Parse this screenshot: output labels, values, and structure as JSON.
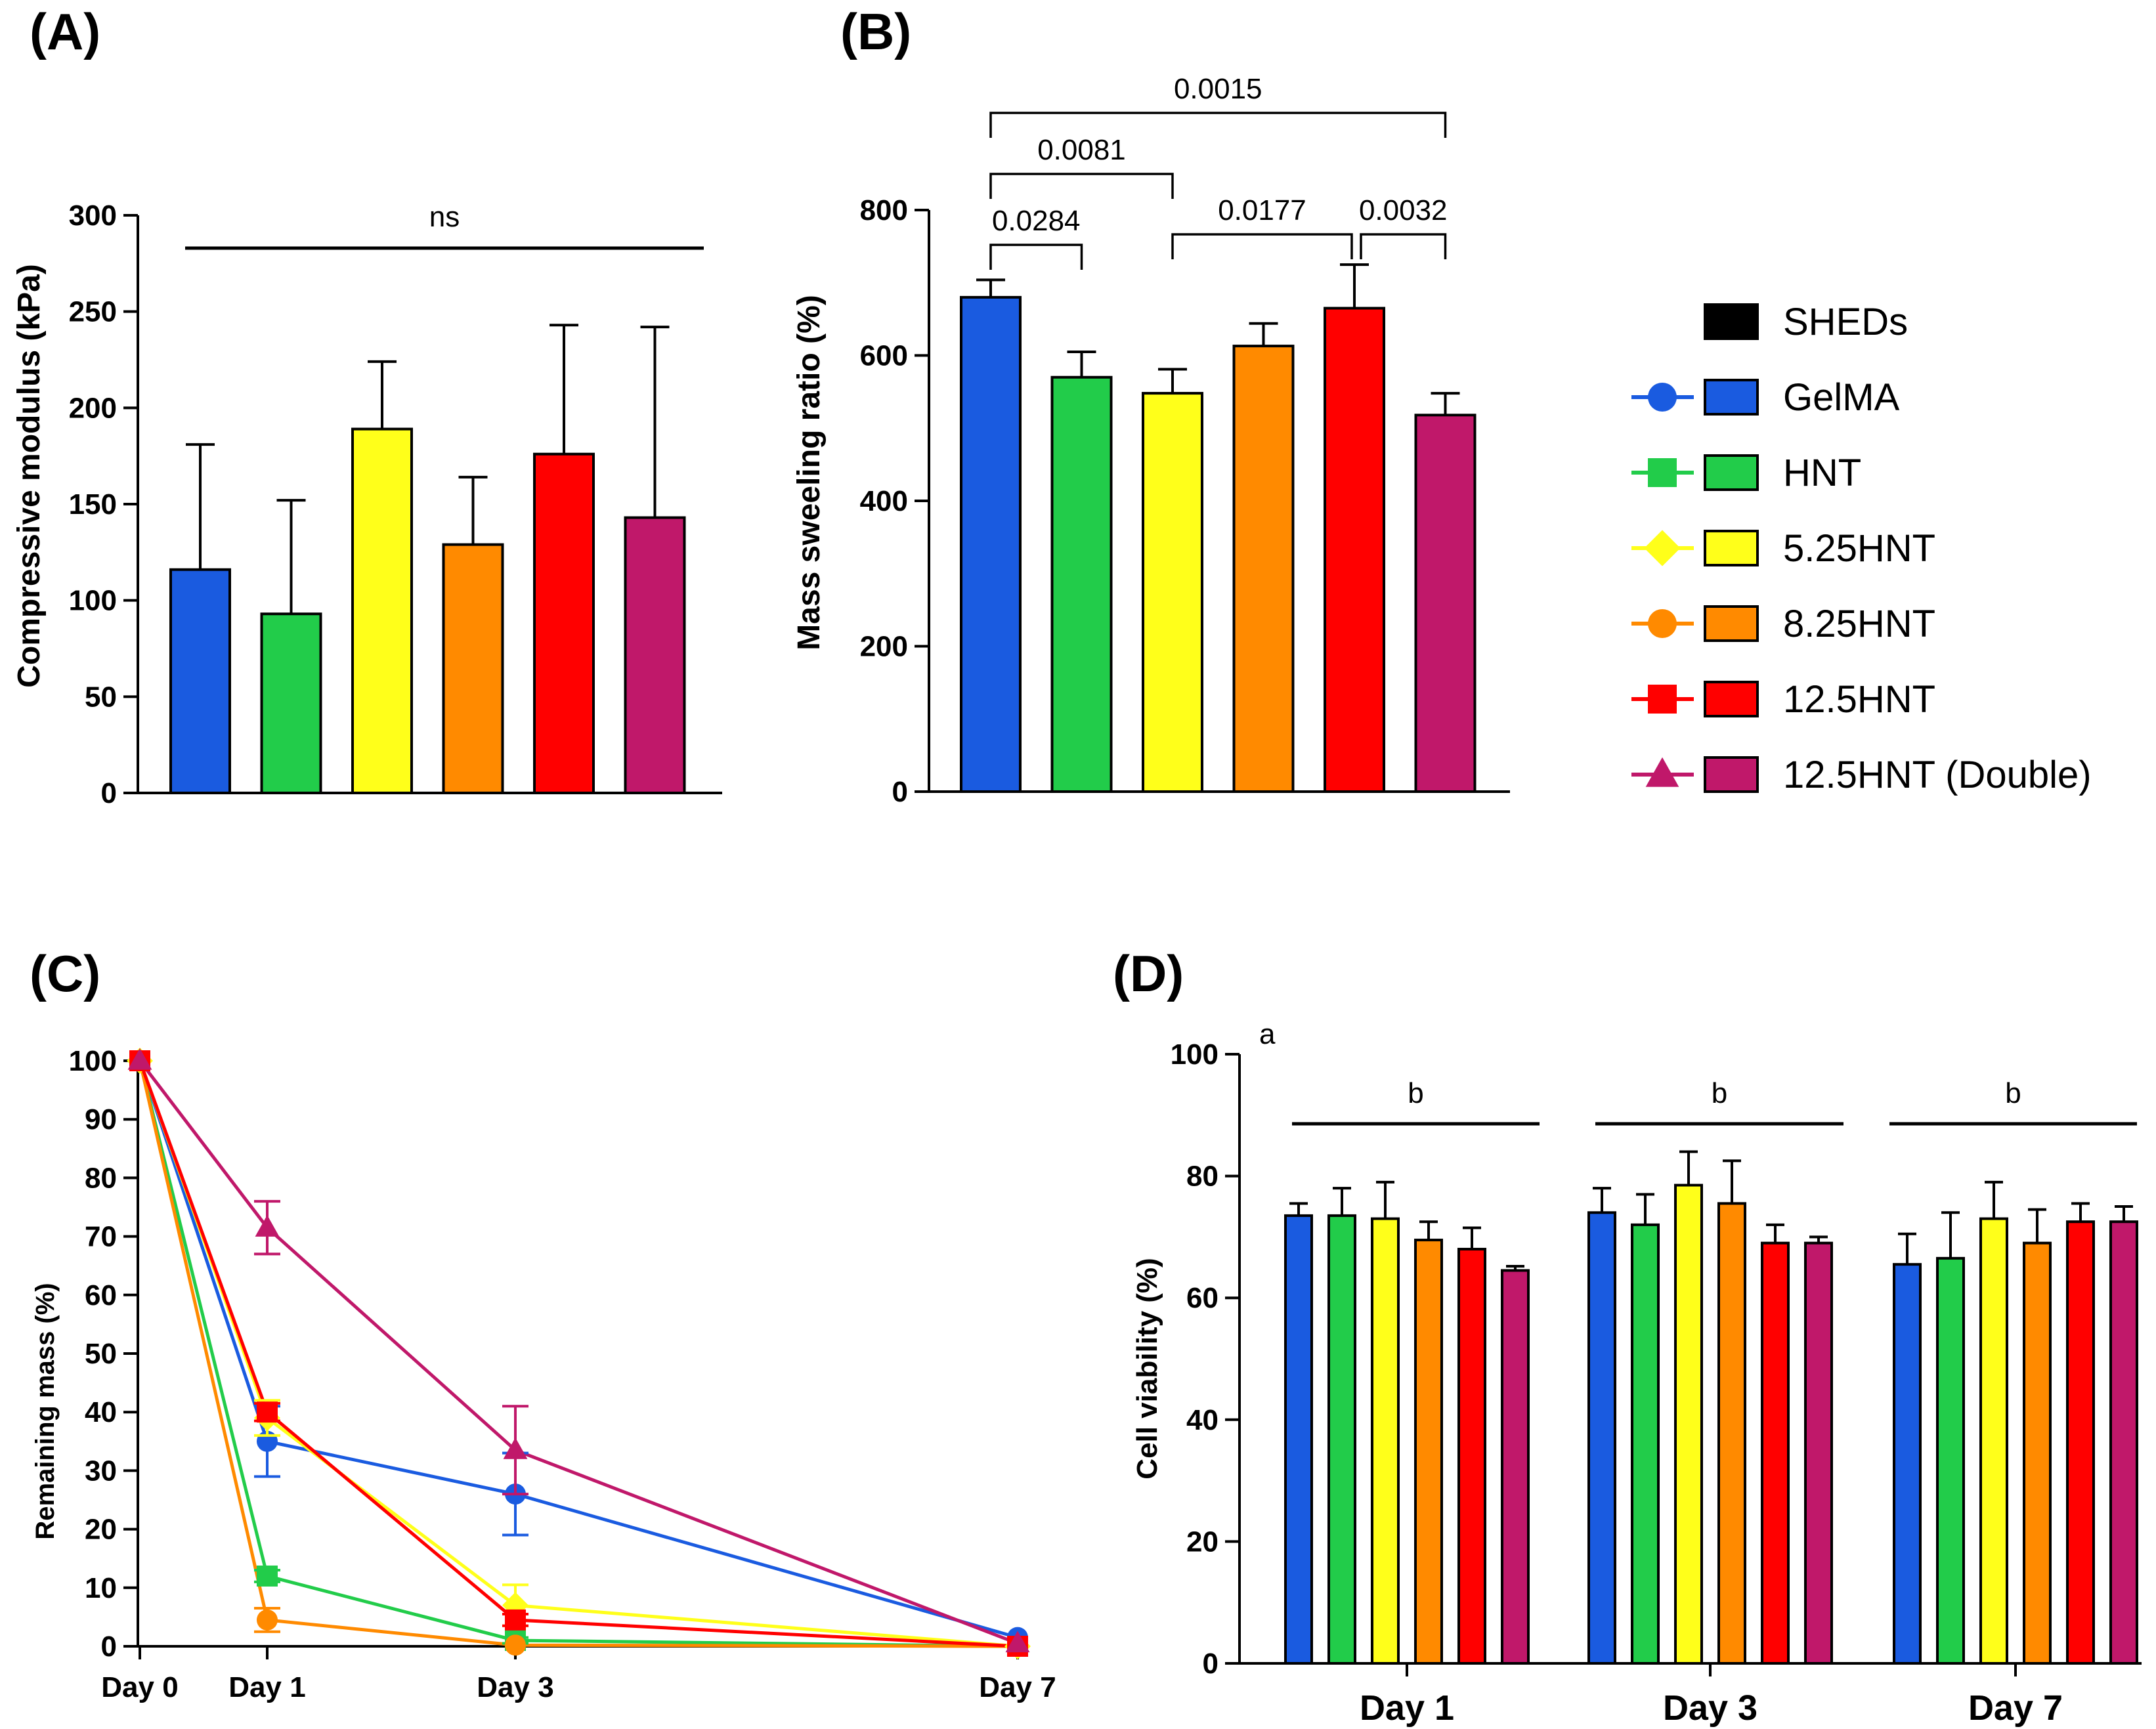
{
  "colors": {
    "GelMA": "#1a5be0",
    "HNT": "#22cc4a",
    "5.25HNT": "#ffff1a",
    "8.25HNT": "#ff8a00",
    "12.5HNT": "#ff0000",
    "12.5HNT (Double)": "#c0186a",
    "SHEDs": "#000000"
  },
  "legend": {
    "items": [
      {
        "label": "SHEDs",
        "marker": "none",
        "color": "#000000"
      },
      {
        "label": "GelMA",
        "marker": "circle",
        "color": "#1a5be0"
      },
      {
        "label": "HNT",
        "marker": "square",
        "color": "#22cc4a"
      },
      {
        "label": "5.25HNT",
        "marker": "diamond",
        "color": "#ffff1a"
      },
      {
        "label": "8.25HNT",
        "marker": "circle",
        "color": "#ff8a00"
      },
      {
        "label": "12.5HNT",
        "marker": "square",
        "color": "#ff0000"
      },
      {
        "label": "12.5HNT (Double)",
        "marker": "triangle",
        "color": "#c0186a"
      }
    ]
  },
  "chart_data": [
    {
      "panel": "(A)",
      "type": "bar",
      "title": "",
      "xlabel": "",
      "ylabel": "Compressive modulus (kPa)",
      "ylim": [
        0,
        300
      ],
      "yticks": [
        0,
        50,
        100,
        150,
        200,
        250,
        300
      ],
      "categories": [
        "GelMA",
        "HNT",
        "5.25HNT",
        "8.25HNT",
        "12.5HNT",
        "12.5HNT (Double)"
      ],
      "values": [
        116,
        93,
        189,
        129,
        176,
        143
      ],
      "errors": [
        65,
        59,
        35,
        35,
        67,
        99
      ],
      "annotations": [
        {
          "text": "ns",
          "from": 0,
          "to": 5
        }
      ]
    },
    {
      "panel": "(B)",
      "type": "bar",
      "title": "",
      "xlabel": "",
      "ylabel": "Mass sweeling ratio (%)",
      "ylim": [
        0,
        800
      ],
      "yticks": [
        0,
        200,
        400,
        600,
        800
      ],
      "categories": [
        "GelMA",
        "HNT",
        "5.25HNT",
        "8.25HNT",
        "12.5HNT",
        "12.5HNT (Double)"
      ],
      "values": [
        680,
        570,
        548,
        613,
        665,
        518
      ],
      "errors": [
        24,
        35,
        33,
        31,
        60,
        30
      ],
      "annotations": [
        {
          "text": "0.0284",
          "from": 0,
          "to": 1
        },
        {
          "text": "0.0081",
          "from": 0,
          "to": 2
        },
        {
          "text": "0.0015",
          "from": 0,
          "to": 5
        },
        {
          "text": "0.0177",
          "from": 2,
          "to": 4
        },
        {
          "text": "0.0032",
          "from": 4,
          "to": 5
        }
      ]
    },
    {
      "panel": "(C)",
      "type": "line",
      "title": "",
      "xlabel": "",
      "ylabel": "Remaining mass (%)",
      "ylim": [
        0,
        100
      ],
      "yticks": [
        0,
        10,
        20,
        30,
        40,
        50,
        60,
        70,
        80,
        90,
        100
      ],
      "x": [
        0,
        1,
        3,
        7
      ],
      "xticklabels": [
        "Day 0",
        "Day 1",
        "Day 3",
        "Day 7"
      ],
      "series": [
        {
          "name": "GelMA",
          "marker": "circle",
          "values": [
            100,
            35,
            26,
            1.5
          ],
          "errors": [
            0,
            6,
            7,
            0
          ]
        },
        {
          "name": "HNT",
          "marker": "square",
          "values": [
            100,
            12,
            1,
            0
          ],
          "errors": [
            0,
            1,
            0.5,
            0
          ]
        },
        {
          "name": "5.25HNT",
          "marker": "diamond",
          "values": [
            100,
            39,
            7,
            0
          ],
          "errors": [
            0,
            3,
            3.5,
            0
          ]
        },
        {
          "name": "8.25HNT",
          "marker": "circle",
          "values": [
            100,
            4.5,
            0.2,
            0
          ],
          "errors": [
            0,
            2,
            0,
            0
          ]
        },
        {
          "name": "12.5HNT",
          "marker": "square",
          "values": [
            100,
            40,
            4.5,
            0
          ],
          "errors": [
            0,
            1.5,
            1,
            0
          ]
        },
        {
          "name": "12.5HNT (Double)",
          "marker": "triangle",
          "values": [
            100,
            71.5,
            33.5,
            0.5
          ],
          "errors": [
            0,
            4.5,
            7.5,
            0
          ]
        }
      ]
    },
    {
      "panel": "(D)",
      "type": "bar",
      "title": "",
      "xlabel": "",
      "ylabel": "Cell viability (%)",
      "ylim": [
        0,
        100
      ],
      "yticks": [
        0,
        20,
        40,
        60,
        80,
        100
      ],
      "categories": [
        "Day 1",
        "Day 3",
        "Day 7"
      ],
      "series": [
        {
          "name": "GelMA",
          "values": [
            73.5,
            74,
            65.5
          ],
          "errors": [
            2,
            4,
            5
          ]
        },
        {
          "name": "HNT",
          "values": [
            73.5,
            72,
            66.5
          ],
          "errors": [
            4.5,
            5,
            7.5
          ]
        },
        {
          "name": "5.25HNT",
          "values": [
            73,
            78.5,
            73
          ],
          "errors": [
            6,
            5.5,
            6
          ]
        },
        {
          "name": "8.25HNT",
          "values": [
            69.5,
            75.5,
            69
          ],
          "errors": [
            3,
            7,
            5.5
          ]
        },
        {
          "name": "12.5HNT",
          "values": [
            68,
            69,
            72.5
          ],
          "errors": [
            3.5,
            3,
            3
          ]
        },
        {
          "name": "12.5HNT (Double)",
          "values": [
            64.5,
            69,
            72.5
          ],
          "errors": [
            0.7,
            1,
            2.5
          ]
        }
      ],
      "annotations": [
        {
          "text": "a",
          "position": "top-left"
        },
        {
          "text": "b",
          "group": "Day 1"
        },
        {
          "text": "b",
          "group": "Day 3"
        },
        {
          "text": "b",
          "group": "Day 7"
        }
      ]
    }
  ]
}
